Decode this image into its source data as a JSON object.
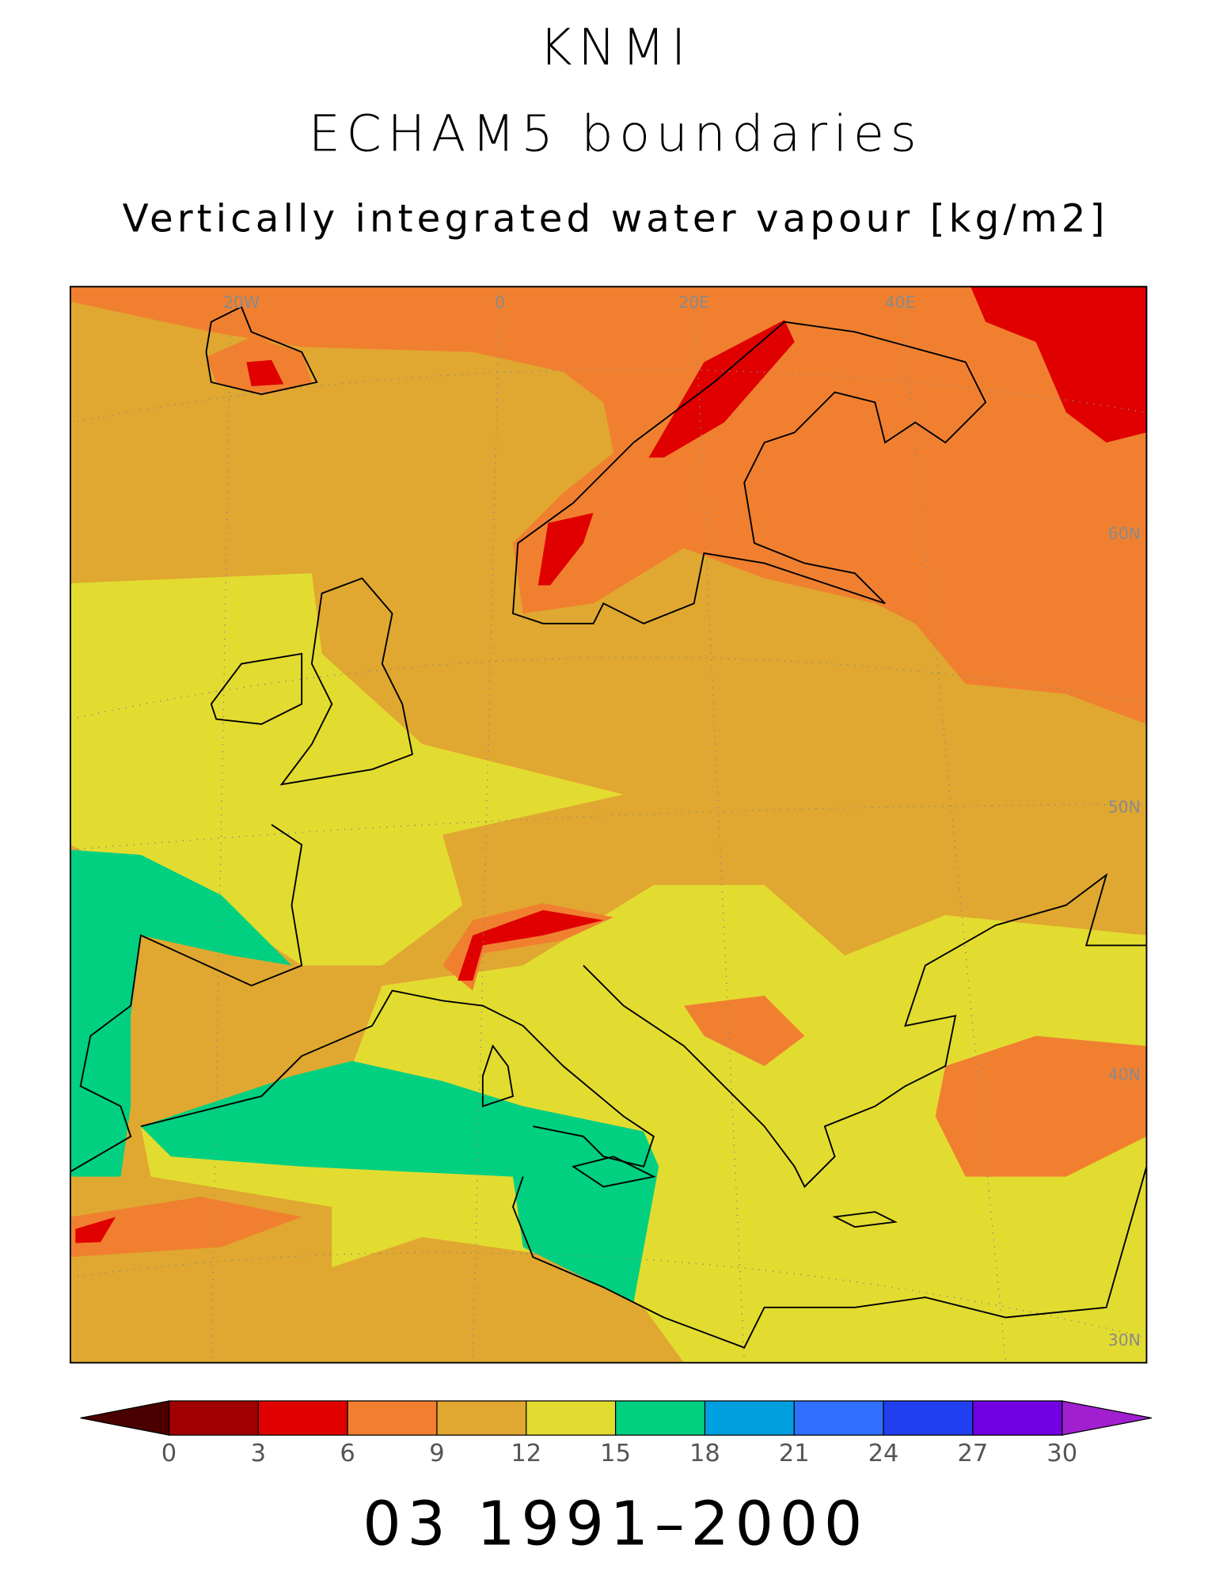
{
  "map": {
    "title": [
      "KNMI",
      "ECHAM5 boundaries"
    ],
    "subtitle": "Vertically integrated water vapour [kg/m2]",
    "grid_labels": {
      "lon": [
        "20W",
        "0",
        "20E",
        "40E"
      ],
      "lat": [
        "60N",
        "50N",
        "40N",
        "30N"
      ]
    },
    "colorbar": {
      "ticks": [
        0,
        3,
        6,
        9,
        12,
        15,
        18,
        21,
        24,
        27,
        30
      ],
      "under_color": "#4a0000",
      "colors": [
        "#a00000",
        "#e00000",
        "#f08030",
        "#e0a830",
        "#e3dc30",
        "#00d080",
        "#00a0e0",
        "#3070ff",
        "#2040f0",
        "#7000e0"
      ],
      "over_color": "#a020d0"
    },
    "period": "03 1991–2000"
  }
}
